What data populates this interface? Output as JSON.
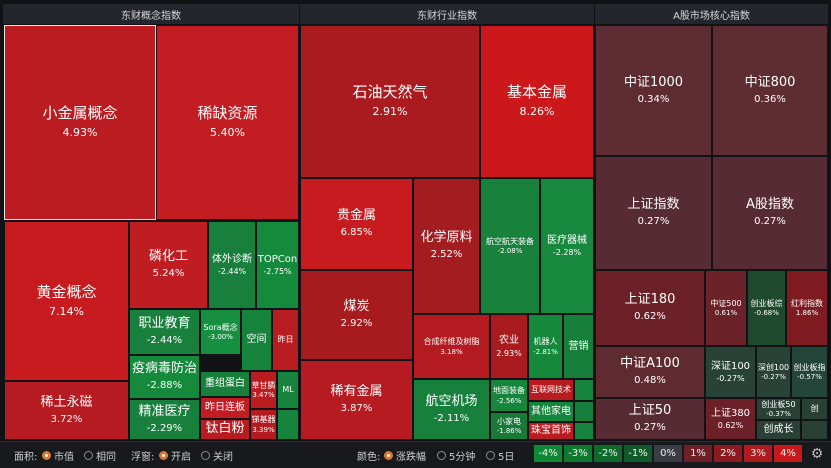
{
  "headers": {
    "concept": "东财概念指数",
    "industry": "东财行业指数",
    "core": "A股市场核心指数"
  },
  "tiles": {
    "xiaojinshu": {
      "name": "小金属概念",
      "pct": "4.93%"
    },
    "xique": {
      "name": "稀缺资源",
      "pct": "5.40%"
    },
    "huangjin": {
      "name": "黄金概念",
      "pct": "7.14%"
    },
    "linhuagong": {
      "name": "磷化工",
      "pct": "5.24%"
    },
    "tiwai": {
      "name": "体外诊断",
      "pct": "-2.44%"
    },
    "topcon": {
      "name": "TOPCon",
      "pct": "-2.75%"
    },
    "zhiye": {
      "name": "职业教育",
      "pct": "-2.44%"
    },
    "sora": {
      "name": "Sora概念",
      "pct": "-3.00%"
    },
    "kongjian": {
      "name": "空间"
    },
    "zuori": {
      "name": "昨日"
    },
    "yimiao": {
      "name": "疫病毒防治",
      "pct": "-2.88%"
    },
    "zhongjin": {
      "name": "重组蛋白"
    },
    "caoganlin": {
      "name": "草甘膦",
      "pct": "3.47%"
    },
    "ml": {
      "name": "ML"
    },
    "xitu": {
      "name": "稀土永磁",
      "pct": "3.72%"
    },
    "jingzhun": {
      "name": "精准医疗",
      "pct": "-2.29%"
    },
    "zuoriliban": {
      "name": "昨日连板"
    },
    "taibaifen": {
      "name": "钛白粉"
    },
    "lasuanji": {
      "name": "锑基器",
      "pct": "3.39%"
    },
    "shiyou": {
      "name": "石油天然气",
      "pct": "2.91%"
    },
    "jiben": {
      "name": "基本金属",
      "pct": "8.26%"
    },
    "guijinshu": {
      "name": "贵金属",
      "pct": "6.85%"
    },
    "huaxue": {
      "name": "化学原料",
      "pct": "2.52%"
    },
    "hangkong": {
      "name": "航空航天装备",
      "pct": "-2.08%"
    },
    "yiliao": {
      "name": "医疗器械",
      "pct": "-2.28%"
    },
    "meitan": {
      "name": "煤炭",
      "pct": "2.92%"
    },
    "hecheng": {
      "name": "合成纤维及树脂",
      "pct": "3.18%"
    },
    "nongye": {
      "name": "农业",
      "pct": "2.93%"
    },
    "jiqiren": {
      "name": "机器人",
      "pct": "-2.81%"
    },
    "yingxiao": {
      "name": "营销"
    },
    "xiyou": {
      "name": "稀有金属",
      "pct": "3.87%"
    },
    "hangkongjichang": {
      "name": "航空机场",
      "pct": "-2.11%"
    },
    "dimian": {
      "name": "地面装备",
      "pct": "-2.56%"
    },
    "hulianwang": {
      "name": "互联网技术"
    },
    "xiaojiadian": {
      "name": "小家电",
      "pct": "-1.86%"
    },
    "qitajiadian": {
      "name": "其他家电"
    },
    "zhubao": {
      "name": "珠宝首饰"
    },
    "zz1000": {
      "name": "中证1000",
      "pct": "0.34%"
    },
    "zz800": {
      "name": "中证800",
      "pct": "0.36%"
    },
    "szzs": {
      "name": "上证指数",
      "pct": "0.27%"
    },
    "agu": {
      "name": "A股指数",
      "pct": "0.27%"
    },
    "sz180": {
      "name": "上证180",
      "pct": "0.62%"
    },
    "zz500": {
      "name": "中证500",
      "pct": "0.61%"
    },
    "cyb": {
      "name": "创业板综",
      "pct": "-0.68%"
    },
    "hongli": {
      "name": "红利指数",
      "pct": "1.86%"
    },
    "zza100": {
      "name": "中证A100",
      "pct": "0.48%"
    },
    "sz100": {
      "name": "深证100",
      "pct": "-0.27%"
    },
    "sz100b": {
      "name": "深创100",
      "pct": "-0.27%"
    },
    "cybz": {
      "name": "创业板指",
      "pct": "-0.57%"
    },
    "sz50": {
      "name": "上证50",
      "pct": "0.27%"
    },
    "sz380": {
      "name": "上证380",
      "pct": "0.62%"
    },
    "cyb50": {
      "name": "创业板50",
      "pct": "-0.37%"
    },
    "cyb_blank": {
      "name": "创"
    },
    "chuangchengzhang": {
      "name": "创成长"
    }
  },
  "controls": {
    "area_label": "面积:",
    "area_opt1": "市值",
    "area_opt2": "相同",
    "float_label": "浮窗:",
    "float_opt1": "开启",
    "float_opt2": "关闭",
    "color_label": "颜色:",
    "color_opt1": "涨跌幅",
    "color_opt2": "5分钟",
    "color_opt3": "5日"
  },
  "legend": [
    "-4%",
    "-3%",
    "-2%",
    "-1%",
    "0%",
    "1%",
    "2%",
    "3%",
    "4%"
  ],
  "legend_colors": [
    "#0e8a35",
    "#0e7a30",
    "#0d6a2b",
    "#135a2b",
    "#3a3d42",
    "#6e2026",
    "#8c1a1f",
    "#ad1b1f",
    "#c8181c"
  ],
  "colors": {
    "up_strong": "#bf1d22",
    "up_mid": "#a21c20",
    "down_mid": "#1a7a3a",
    "down_strong": "#168e3b",
    "flat_pos": "#6a2930",
    "flat_neg": "#1f4a2e",
    "accent": "#e0782c"
  }
}
